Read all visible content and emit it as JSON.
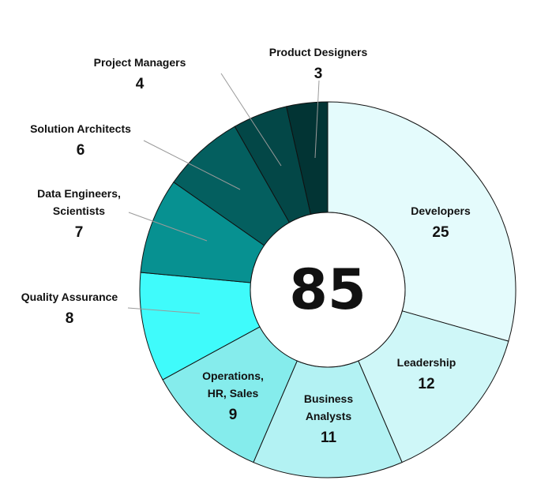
{
  "chart_data": {
    "type": "pie",
    "total_label": "85",
    "slices": [
      {
        "label": [
          "Developers"
        ],
        "value": 25,
        "color": "#E4FBFC"
      },
      {
        "label": [
          "Leadership"
        ],
        "value": 12,
        "color": "#CFF7F8"
      },
      {
        "label": [
          "Business",
          "Analysts"
        ],
        "value": 11,
        "color": "#B3F2F3"
      },
      {
        "label": [
          "Operations,",
          "HR, Sales"
        ],
        "value": 9,
        "color": "#85ECEC"
      },
      {
        "label": [
          "Quality Assurance"
        ],
        "value": 8,
        "color": "#3FFBFB"
      },
      {
        "label": [
          "Data Engineers,",
          "Scientists"
        ],
        "value": 7,
        "color": "#079191"
      },
      {
        "label": [
          "Solution Architects"
        ],
        "value": 6,
        "color": "#045F5F"
      },
      {
        "label": [
          "Project Managers"
        ],
        "value": 4,
        "color": "#034747"
      },
      {
        "label": [
          "Product Designers"
        ],
        "value": 3,
        "color": "#023434"
      }
    ]
  }
}
